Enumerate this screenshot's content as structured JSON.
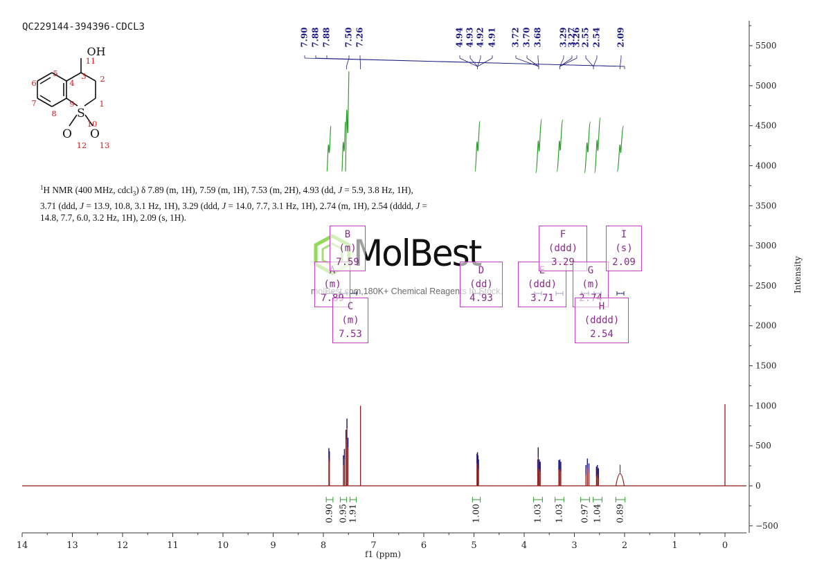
{
  "sample_id": "QC229144-394396-CDCL3",
  "nmr_description": {
    "sup": "1",
    "segments": [
      {
        "t": "H NMR (400 MHz, cdcl",
        "i": false
      },
      {
        "t": "3",
        "sub": true
      },
      {
        "t": ") δ 7.89 (m, 1H), 7.59 (m, 1H), 7.53 (m, 2H), 4.93 (dd, ",
        "i": false
      },
      {
        "t": "J",
        "i": true
      },
      {
        "t": " = 5.9, 3.8 Hz, 1H), 3.71 (ddd, ",
        "i": false
      },
      {
        "t": "J",
        "i": true
      },
      {
        "t": " = 13.9, 10.8, 3.1 Hz, 1H), 3.29 (ddd, ",
        "i": false
      },
      {
        "t": "J",
        "i": true
      },
      {
        "t": " = 14.0, 7.7, 3.1 Hz, 1H), 2.74 (m, 1H), 2.54 (dddd, ",
        "i": false
      },
      {
        "t": "J",
        "i": true
      },
      {
        "t": " = 14.8, 7.7, 6.0, 3.2 Hz, 1H), 2.09 (s, 1H).",
        "i": false
      }
    ]
  },
  "molecule": {
    "labels": {
      "oh": "OH",
      "s": "S",
      "o": "O"
    },
    "numbers": [
      "1",
      "2",
      "3",
      "4",
      "5",
      "6",
      "7",
      "8",
      "9",
      "10",
      "11",
      "12",
      "13"
    ]
  },
  "watermark": {
    "brand": "MolBest",
    "tagline": "molBest.com,180K+ Chemical Reagents In Stock."
  },
  "colors": {
    "spectrum": "#8b1a1a",
    "integral": "#2e9e2e",
    "peak_label": "#1a1a80",
    "box": "#c040c0",
    "axis": "#333333"
  },
  "chart_data": {
    "type": "line",
    "xlabel": "f1 (ppm)",
    "ylabel": "Intensity",
    "xlim": [
      14,
      -0.4
    ],
    "ylim": [
      -500,
      5800
    ],
    "x_ticks": [
      14,
      13,
      12,
      11,
      10,
      9,
      8,
      7,
      6,
      5,
      4,
      3,
      2,
      1,
      0
    ],
    "y_ticks": [
      -500,
      0,
      500,
      1000,
      1500,
      2000,
      2500,
      3000,
      3500,
      4000,
      4500,
      5000,
      5500
    ],
    "peaks": [
      {
        "ppm": 7.89,
        "height": 470
      },
      {
        "ppm": 7.88,
        "height": 430
      },
      {
        "ppm": 7.6,
        "height": 380
      },
      {
        "ppm": 7.58,
        "height": 460
      },
      {
        "ppm": 7.55,
        "height": 700
      },
      {
        "ppm": 7.53,
        "height": 840
      },
      {
        "ppm": 7.51,
        "height": 600
      },
      {
        "ppm": 7.26,
        "height": 1000
      },
      {
        "ppm": 4.94,
        "height": 400
      },
      {
        "ppm": 4.93,
        "height": 420
      },
      {
        "ppm": 4.92,
        "height": 380
      },
      {
        "ppm": 4.91,
        "height": 330
      },
      {
        "ppm": 3.73,
        "height": 330
      },
      {
        "ppm": 3.72,
        "height": 480
      },
      {
        "ppm": 3.7,
        "height": 330
      },
      {
        "ppm": 3.68,
        "height": 300
      },
      {
        "ppm": 3.31,
        "height": 320
      },
      {
        "ppm": 3.29,
        "height": 330
      },
      {
        "ppm": 3.27,
        "height": 300
      },
      {
        "ppm": 2.77,
        "height": 260
      },
      {
        "ppm": 2.74,
        "height": 340
      },
      {
        "ppm": 2.71,
        "height": 280
      },
      {
        "ppm": 2.56,
        "height": 240
      },
      {
        "ppm": 2.54,
        "height": 260
      },
      {
        "ppm": 2.52,
        "height": 220
      },
      {
        "ppm": 2.09,
        "height": 160,
        "broad": true
      },
      {
        "ppm": 0.0,
        "height": 1020
      }
    ],
    "peak_labels": [
      "7.90",
      "7.88",
      "7.88",
      "7.50",
      "7.26",
      "4.94",
      "4.93",
      "4.92",
      "4.91",
      "3.72",
      "3.70",
      "3.68",
      "3.29",
      "3.27",
      "3.26",
      "2.55",
      "2.54",
      "2.09"
    ],
    "peak_label_groups": [
      {
        "labels": [
          "7.90",
          "7.88",
          "7.88"
        ],
        "ppm": 7.89
      },
      {
        "labels": [
          "7.50"
        ],
        "ppm": 7.54
      },
      {
        "labels": [
          "7.26"
        ],
        "ppm": 7.26
      },
      {
        "labels": [
          "4.94",
          "4.93",
          "4.92",
          "4.91"
        ],
        "ppm": 4.93
      },
      {
        "labels": [
          "3.72",
          "3.70",
          "3.68"
        ],
        "ppm": 3.71
      },
      {
        "labels": [
          "3.29",
          "3.27",
          "3.26"
        ],
        "ppm": 3.29
      },
      {
        "labels": [
          "2.55",
          "2.54"
        ],
        "ppm": 2.62
      },
      {
        "labels": [
          "2.09"
        ],
        "ppm": 2.09
      }
    ],
    "integrals": [
      {
        "ppm": 7.89,
        "value": "0.90",
        "from": 7.93,
        "to": 7.85
      },
      {
        "ppm": 7.59,
        "value": "0.95",
        "from": 7.63,
        "to": 7.56
      },
      {
        "ppm": 7.53,
        "value": "1.91",
        "from": 7.56,
        "to": 7.49
      },
      {
        "ppm": 4.93,
        "value": "1.00",
        "from": 4.98,
        "to": 4.88
      },
      {
        "ppm": 3.71,
        "value": "1.03",
        "from": 3.77,
        "to": 3.65
      },
      {
        "ppm": 3.29,
        "value": "1.03",
        "from": 3.35,
        "to": 3.23
      },
      {
        "ppm": 2.74,
        "value": "0.97",
        "from": 2.8,
        "to": 2.68
      },
      {
        "ppm": 2.54,
        "value": "1.04",
        "from": 2.6,
        "to": 2.48
      },
      {
        "ppm": 2.09,
        "value": "0.89",
        "from": 2.15,
        "to": 2.02
      }
    ],
    "multiplets": [
      {
        "letter": "A",
        "type": "(m)",
        "shift": "7.89"
      },
      {
        "letter": "B",
        "type": "(m)",
        "shift": "7.59"
      },
      {
        "letter": "C",
        "type": "(m)",
        "shift": "7.53"
      },
      {
        "letter": "D",
        "type": "(dd)",
        "shift": "4.93"
      },
      {
        "letter": "E",
        "type": "(ddd)",
        "shift": "3.71"
      },
      {
        "letter": "F",
        "type": "(ddd)",
        "shift": "3.29"
      },
      {
        "letter": "G",
        "type": "(m)",
        "shift": "2.74"
      },
      {
        "letter": "H",
        "type": "(dddd)",
        "shift": "2.54"
      },
      {
        "letter": "I",
        "type": "(s)",
        "shift": "2.09"
      }
    ]
  }
}
